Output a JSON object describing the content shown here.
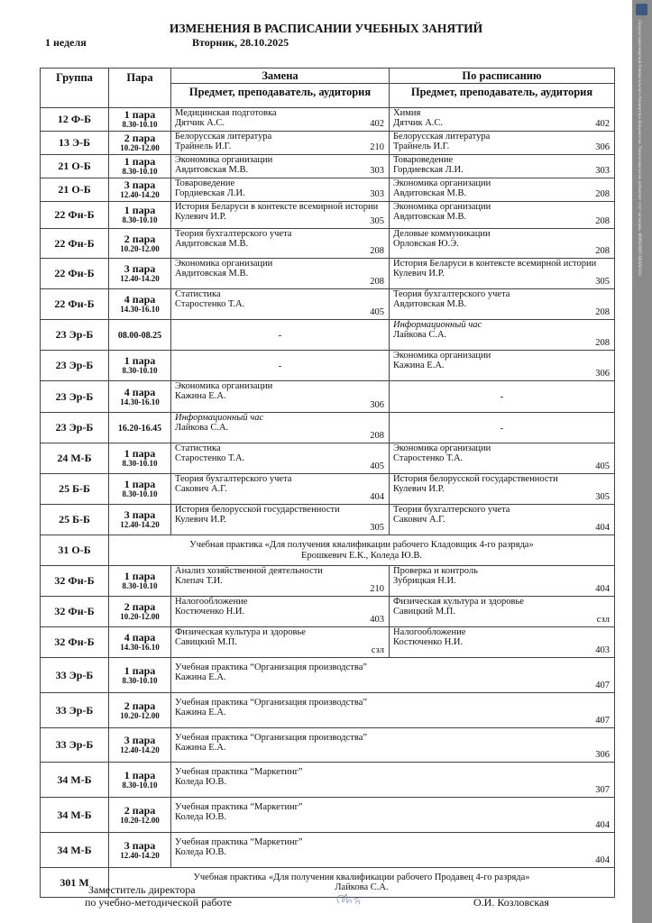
{
  "header": {
    "title": "ИЗМЕНЕНИЯ В РАСПИСАНИИ УЧЕБНЫХ ЗАНЯТИЙ",
    "week": "1  неделя",
    "date": "Вторник, 28.10.2025"
  },
  "table": {
    "col_group": "Группа",
    "col_para": "Пара",
    "col_replacement": "Замена",
    "col_schedule": "По расписанию",
    "sub_header": "Предмет, преподаватель, аудитория",
    "rows": [
      {
        "group": "12 Ф-Б",
        "para": "1 пара",
        "time": "8.30-10.10",
        "rep": {
          "subject": "Медицинская подготовка",
          "teacher": "Дятчик А.С.",
          "room": "402"
        },
        "sched": {
          "subject": "Химия",
          "teacher": "Дятчик А.С.",
          "room": "402"
        }
      },
      {
        "group": "13 Э-Б",
        "para": "2 пара",
        "time": "10.20-12.00",
        "rep": {
          "subject": "Белорусская литература",
          "teacher": "Трайнель И.Г.",
          "room": "210"
        },
        "sched": {
          "subject": "Белорусская литература",
          "teacher": "Трайнель И.Г.",
          "room": "306"
        }
      },
      {
        "group": "21 О-Б",
        "para": "1 пара",
        "time": "8.30-10.10",
        "rep": {
          "subject": "Экономика организации",
          "teacher": "Авдитовская М.В.",
          "room": "303"
        },
        "sched": {
          "subject": "Товароведение",
          "teacher": "Гордиевская Л.И.",
          "room": "303"
        }
      },
      {
        "group": "21 О-Б",
        "para": "3 пара",
        "time": "12.40-14.20",
        "rep": {
          "subject": "Товароведение",
          "teacher": "Гордиевская Л.И.",
          "room": "303"
        },
        "sched": {
          "subject": "Экономика организации",
          "teacher": "Авдитовская М.В.",
          "room": "208"
        }
      },
      {
        "group": "22 Фн-Б",
        "para": "1 пара",
        "time": "8.30-10.10",
        "rep": {
          "subject": "История Беларуси в контексте всемирной истории",
          "teacher": "Кулевич И.Р.",
          "room": "305"
        },
        "sched": {
          "subject": "Экономика организации",
          "teacher": "Авдитовская   М.В.",
          "room": "208"
        }
      },
      {
        "group": "22 Фн-Б",
        "para": "2 пара",
        "time": "10.20-12.00",
        "rep": {
          "subject": "Теория бухгалтерского учета",
          "teacher": "Авдитовская М.В.",
          "room": "208"
        },
        "sched": {
          "subject": "Деловые коммуникации",
          "teacher": "Орловская Ю.Э.",
          "room": "208"
        }
      },
      {
        "group": "22 Фн-Б",
        "para": "3 пара",
        "time": "12.40-14.20",
        "rep": {
          "subject": "Экономика организации",
          "teacher": "Авдитовская   М.В.",
          "room": "208"
        },
        "sched": {
          "subject": "История Беларуси в контексте всемирной истории",
          "teacher": "Кулевич И.Р.",
          "room": "305"
        }
      },
      {
        "group": "22 Фн-Б",
        "para": "4 пара",
        "time": "14.30-16.10",
        "rep": {
          "subject": "Статистика",
          "teacher": "Старостенко Т.А.",
          "room": "405"
        },
        "sched": {
          "subject": "Теория бухгалтерского учета",
          "teacher": "Авдитовская М.В.",
          "room": "208"
        }
      },
      {
        "group": "23 Эр-Б",
        "para": "",
        "time": "08.00-08.25",
        "rep": {
          "dash": "-"
        },
        "sched": {
          "subject": "Информационный час",
          "italic": true,
          "teacher": "Лайкова С.А.",
          "room": "208"
        }
      },
      {
        "group": "23 Эр-Б",
        "para": "1 пара",
        "time": "8.30-10.10",
        "rep": {
          "dash": "-"
        },
        "sched": {
          "subject": "Экономика организации",
          "teacher": "Кажина Е.А.",
          "room": "306"
        }
      },
      {
        "group": "23 Эр-Б",
        "para": "4 пара",
        "time": "14.30-16.10",
        "rep": {
          "subject": "Экономика организации",
          "teacher": "Кажина Е.А.",
          "room": "306"
        },
        "sched": {
          "dash": "-"
        }
      },
      {
        "group": "23 Эр-Б",
        "para": "",
        "time": "16.20-16.45",
        "rep": {
          "subject": "Информационный час",
          "italic": true,
          "teacher": "Лайкова С.А.",
          "room": "208"
        },
        "sched": {
          "dash": "-"
        }
      },
      {
        "group": "24 М-Б",
        "para": "1 пара",
        "time": "8.30-10.10",
        "rep": {
          "subject": "Статистика",
          "teacher": "Старостенко Т.А.",
          "room": "405"
        },
        "sched": {
          "subject": "Экономика организации",
          "teacher": " Старостенко Т.А.",
          "room": "405"
        }
      },
      {
        "group": "25 Б-Б",
        "para": "1 пара",
        "time": "8.30-10.10",
        "rep": {
          "subject": "Теория бухгалтерского учета",
          "teacher": "Сакович А.Г.",
          "room": "404"
        },
        "sched": {
          "subject": "История белорусской государственности",
          "teacher": "Кулевич И.Р.",
          "room": "305"
        }
      },
      {
        "group": "25 Б-Б",
        "para": "3 пара",
        "time": "12.40-14.20",
        "rep": {
          "subject": "История белорусской государственности",
          "teacher": "Кулевич И.Р.",
          "room": "305"
        },
        "sched": {
          "subject": "Теория бухгалтерского учета",
          "teacher": "Сакович А.Г.",
          "room": "404"
        }
      },
      {
        "group": "31 О-Б",
        "centered": {
          "line1": "Учебная практика «Для получения квалификации рабочего Кладовщик 4-го разряда»",
          "line2": "Ерошкевич Е.К., Коледа Ю.В."
        }
      },
      {
        "group": "32 Фн-Б",
        "para": "1 пара",
        "time": "8.30-10.10",
        "rep": {
          "subject": "Анализ хозяйственной деятельности",
          "teacher": "Клепач Т.И.",
          "room": "210"
        },
        "sched": {
          "subject": "Проверка и контроль",
          "teacher": "Зубрицкая Н.И.",
          "room": "404"
        }
      },
      {
        "group": "32 Фн-Б",
        "para": "2 пара",
        "time": "10.20-12.00",
        "rep": {
          "subject": "Налогообложение",
          "teacher": "Костюченко Н.И.",
          "room": "403"
        },
        "sched": {
          "subject": "Физическая культура и здоровье",
          "teacher": "Савицкий М.П.",
          "room": "сзл"
        }
      },
      {
        "group": "32 Фн-Б",
        "para": "4 пара",
        "time": "14.30-16.10",
        "rep": {
          "subject": "Физическая культура и здоровье",
          "teacher": "Савицкий М.П.",
          "room": "сзл"
        },
        "sched": {
          "subject": "Налогообложение",
          "teacher": "Костюченко Н.И.",
          "room": "403"
        }
      },
      {
        "group": "33 Эр-Б",
        "para": "1 пара",
        "time": "8.30-10.10",
        "merged": {
          "subject": "Учебная практика “Организация производства”",
          "teacher": "Кажина Е.А.",
          "room": "407"
        }
      },
      {
        "group": "33 Эр-Б",
        "para": "2 пара",
        "time": "10.20-12.00",
        "merged": {
          "subject": "Учебная практика “Организация производства”",
          "teacher": "Кажина Е.А.",
          "room": "407"
        }
      },
      {
        "group": "33 Эр-Б",
        "para": "3 пара",
        "time": "12.40-14.20",
        "merged": {
          "subject": "Учебная практика “Организация производства”",
          "teacher": "Кажина Е.А.",
          "room": "306"
        }
      },
      {
        "group": "34 М-Б",
        "para": "1 пара",
        "time": "8.30-10.10",
        "merged": {
          "subject": "Учебная практика “Маркетинг”",
          "teacher": "Коледа Ю.В.",
          "room": "307"
        }
      },
      {
        "group": "34 М-Б",
        "para": "2 пара",
        "time": "10.20-12.00",
        "merged": {
          "subject": "Учебная практика “Маркетинг”",
          "teacher": "Коледа Ю.В.",
          "room": "404"
        }
      },
      {
        "group": "34 М-Б",
        "para": "3 пара",
        "time": "12.40-14.20",
        "merged": {
          "subject": "Учебная практика “Маркетинг”",
          "teacher": "Коледа Ю.В.",
          "room": "404"
        }
      },
      {
        "group": "301 М",
        "centered": {
          "line1": "Учебная практика «Для получения квалификации рабочего Продавец 4-го разряда»",
          "line2": "Лайкова С.А."
        }
      }
    ]
  },
  "footer": {
    "position_line1": "Заместитель директора",
    "position_line2": "по учебно-методической работе",
    "signer": "О.И. Козловская"
  },
  "watermark": {
    "text": "Создано демо-версией Универсального Конвертера Документов. Полная версия не добавляет этот заголовок. WWW.PRINT-DRIVER.RU"
  }
}
